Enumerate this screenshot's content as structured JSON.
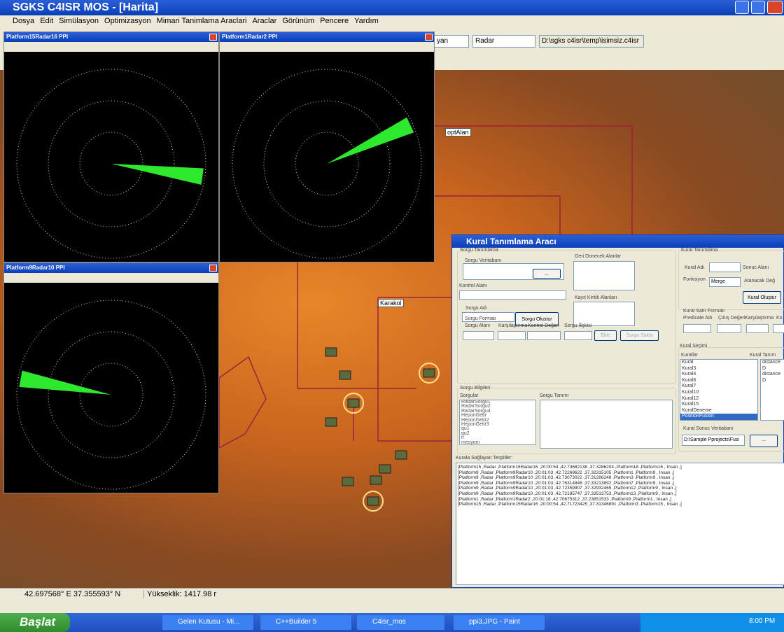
{
  "window": {
    "title": "SGKS C4ISR MOS  - [Harita]"
  },
  "menu": [
    "Dosya",
    "Edit",
    "Simülasyon",
    "Optimizasyon",
    "Mimari Tanimlama Araclari",
    "Araclar",
    "Görünüm",
    "Pencere",
    "Yardım"
  ],
  "toolbar": {
    "combo1": "yan",
    "combo2": "Radar",
    "path": "D:\\sgks c4isr\\temp\\isimsiz.c4isr"
  },
  "radar_windows": [
    {
      "title": "Platform15Radar16 PPI"
    },
    {
      "title": "Platform1Radar2 PPI"
    },
    {
      "title": "Platform9Radar10 PPI"
    }
  ],
  "map_labels": [
    "optAlan",
    "Karakol"
  ],
  "dialog": {
    "title": "Kural Tanımlama Aracı",
    "q_group": "Sorgu Tanımlama",
    "q_db": "Sorgu Veritabanı",
    "browse": "...",
    "return_fields": "Geri Donecek Alanlar",
    "control_field": "Kontrol Alanı",
    "record_fields": "Kayıt Kiritik Alanları",
    "q_name": "Sorgu Adı",
    "q_create": "Sorgu Olustur",
    "q_format": "Sorgu Formatı",
    "f_cols": [
      "Sorgu Alanı",
      "Karşılaştırma",
      "Kontrol Değeri",
      "Sorgu İlişkisi"
    ],
    "add": "Ekle",
    "save": "Sorgu Sakla",
    "q_info": "Sorgu Bilgileri",
    "queries_label": "Sorgular",
    "queries": [
      "RadarSorgu1",
      "RadarSorgu2",
      "RadarSorgu4",
      "HeponGetir",
      "HeponGetir2",
      "HeponGetir3",
      "qu1",
      "qu2",
      "lr",
      "mesyeni"
    ],
    "q_def": "Sorgu Tanımı",
    "rule_group": "Kural Tanımlama",
    "rule_name": "Kural Adı",
    "result_field": "Sonuc Alanı",
    "function": "Fonksiyon",
    "function_value": "Merge",
    "assigned": "Atanacak Değ",
    "rule_create": "Kural Oluştur",
    "row_format": "Kural Satır Formatı",
    "row_cols": [
      "Predicate Adı",
      "Çıkış Değeri",
      "Karşılaştırma",
      "Ko"
    ],
    "rule_select": "Kural Seçimi",
    "rules_label": "Kurallar",
    "rule_def_label": "Kural Tanım",
    "rules": [
      "Kural",
      "Kural3",
      "Kural4",
      "Kural6",
      "Kural7",
      "Kural10",
      "Kural12",
      "Kural15",
      "KuralDeneme",
      "PositionFusion"
    ],
    "rule_defs": [
      "distance D",
      "distance D"
    ],
    "result_db": "Kural Sonuc Veritabanı",
    "result_db_path": "D:\\Sample Pprojects\\Fusi",
    "browse2": "...",
    "matches_label": "Kurala Sağlayan Tespitler:",
    "matches": [
      "[Platform15 ,Radar ,Platform15Radar16 ,20:00:54 ,42.73682138 ,37.3286204 ,Platform18 ,Platform15 , Insan ,]",
      "[Platform9 ,Radar ,Platform9Radar10 ,20:01:03 ,42.72268622 ,37.32315105 ,Platform1 ,Platform9 , Insan ,]",
      "[Platform9 ,Radar ,Platform9Radar10 ,20:01:03 ,42.73073022 ,37.31286248 ,Platform3 ,Platform9 , Insan ,]",
      "[Platform9 ,Radar ,Platform9Radar10 ,20:01:03 ,42.76314846 ,37.33213892 ,Platform7 ,Platform9 , Insan ,]",
      "[Platform9 ,Radar ,Platform9Radar10 ,20:01:03 ,42.72359907 ,37.32932465 ,Platform12 ,Platform9 , Insan ,]",
      "[Platform9 ,Radar ,Platform9Radar10 ,20:01:03 ,42.72185747 ,37.33513753 ,Platform13 ,Platform9 , Insan ,]",
      "[Platform1 ,Radar ,Platform1Radar2 ,20:01:18 ,42.70675312 ,37.23851533 ,Platform9 ,Platform1 , Insan ,]",
      "[Platform15 ,Radar ,Platform15Radar16 ,20:00:54 ,42.71723425 ,37.31346891 ,Platform3 ,Platform15 , Insan ,]"
    ]
  },
  "status": {
    "coords": "42.697568° E 37.355593° N",
    "elevation": "Yükseklik: 1417.98 r"
  },
  "taskbar": {
    "start": "Başlat",
    "items": [
      "Gelen Kutusu - Mi...",
      "C++Builder 5",
      "C4isr_mos",
      "ppi3.JPG - Paint"
    ],
    "clock": "8:00 PM"
  }
}
